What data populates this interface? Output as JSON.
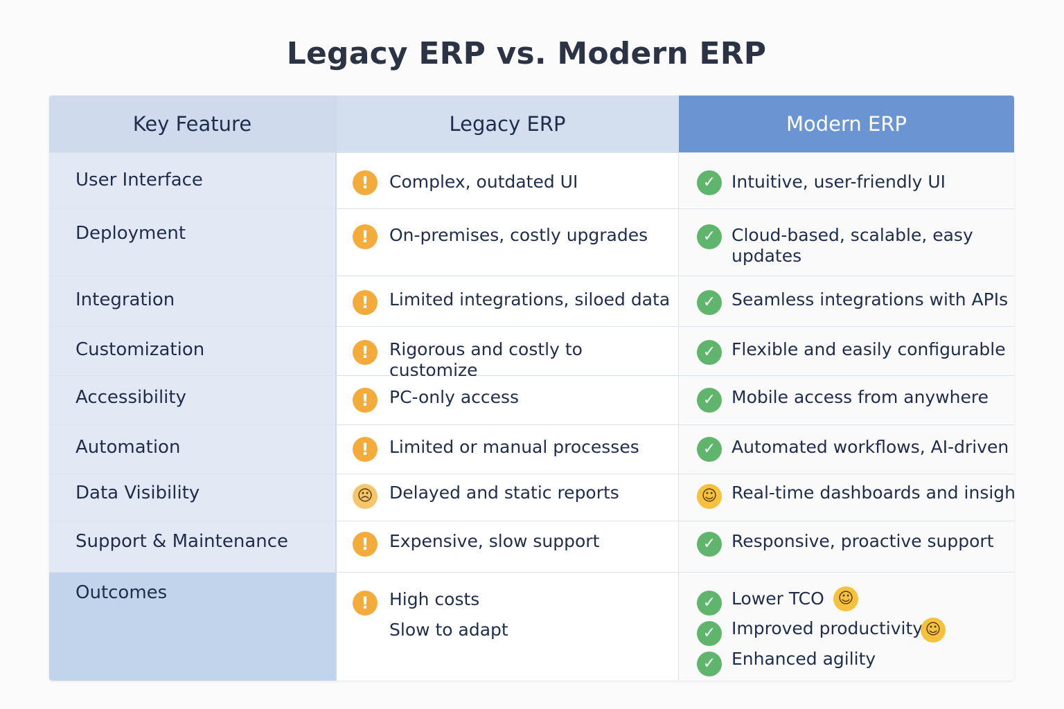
{
  "title": "Legacy ERP vs. Modern ERP",
  "header": {
    "feature": "Key Feature",
    "legacy": "Legacy ERP",
    "modern": "Modern ERP"
  },
  "rows": [
    {
      "feature": "User Interface",
      "legacy": "Complex, outdated UI",
      "legacy_icon": "warning-icon",
      "modern": "Intuitive, user-friendly UI",
      "modern_icon": "check-icon"
    },
    {
      "feature": "Deployment",
      "legacy": "On-premises, costly upgrades",
      "legacy_icon": "warning-icon",
      "modern": "Cloud-based, scalable, easy updates",
      "modern_icon": "check-icon"
    },
    {
      "feature": "Integration",
      "legacy": "Limited integrations, siloed data",
      "legacy_icon": "warning-icon",
      "modern": "Seamless integrations with APIs",
      "modern_icon": "check-icon"
    },
    {
      "feature": "Customization",
      "legacy": "Rigorous and costly to customize",
      "legacy_icon": "warning-icon",
      "modern": "Flexible and easily configurable",
      "modern_icon": "check-icon"
    },
    {
      "feature": "Accessibility",
      "legacy": "PC-only access",
      "legacy_icon": "warning-icon",
      "modern": "Mobile access from anywhere",
      "modern_icon": "check-icon"
    },
    {
      "feature": "Automation",
      "legacy": "Limited or manual processes",
      "legacy_icon": "warning-icon",
      "modern": "Automated workflows, AI-driven",
      "modern_icon": "check-icon"
    },
    {
      "feature": "Data Visibility",
      "legacy": "Delayed and static reports",
      "legacy_icon": "frown-emoji-icon",
      "modern": "Real-time dashboards and insights",
      "modern_icon": "surprised-emoji-icon"
    },
    {
      "feature": "Support & Maintenance",
      "legacy": "Expensive, slow support",
      "legacy_icon": "warning-icon",
      "modern": "Responsive, proactive support",
      "modern_icon": "check-icon"
    }
  ],
  "outcomes": {
    "feature": "Outcomes",
    "legacy": [
      "High costs",
      "Slow to adapt"
    ],
    "legacy_icon": "warning-icon",
    "modern": [
      "Lower TCO",
      "Improved productivity",
      "Enhanced agility"
    ],
    "modern_icon": "check-icon",
    "modern_extra_icons": [
      "smile-emoji-icon",
      "smile-emoji-icon"
    ]
  },
  "colors": {
    "header_modern_bg": "#6a95d2",
    "warning": "#f3ab3c",
    "check": "#5fb56b",
    "feature_col_bg": "#e3e9f4"
  }
}
